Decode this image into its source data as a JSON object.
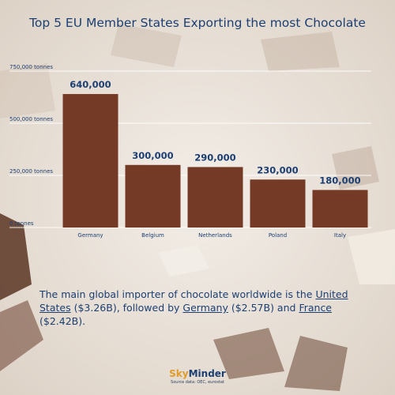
{
  "title": "Top 5 EU Member States Exporting the most Chocolate",
  "chart_data": {
    "type": "bar",
    "categories": [
      "Germany",
      "Belgium",
      "Netherlands",
      "Poland",
      "Italy"
    ],
    "values": [
      640000,
      300000,
      290000,
      230000,
      180000
    ],
    "value_labels": [
      "640,000",
      "300,000",
      "290,000",
      "230,000",
      "180,000"
    ],
    "y_ticks": [
      {
        "value": 0,
        "label": "0 tonnes"
      },
      {
        "value": 250000,
        "label": "250,000 tonnes"
      },
      {
        "value": 500000,
        "label": "500,000 tonnes"
      },
      {
        "value": 750000,
        "label": "750,000 tonnes"
      }
    ],
    "ylim": [
      0,
      750000
    ],
    "xlabel": "",
    "ylabel": "",
    "grid": true,
    "bar_color": "#743a26"
  },
  "caption": {
    "part1": "The main global importer of chocolate worldwide is the ",
    "us_link": "United States",
    "part2": " ($3.26B),  followed by ",
    "de_link": "Germany",
    "part3": " ($2.57B) and ",
    "fr_link": "France",
    "part4": " ($2.42B)."
  },
  "brand": {
    "name_prefix": "Sky",
    "name_suffix": "Minder",
    "source": "Source data: OEC, eurostat"
  },
  "colors": {
    "title": "#1c3f73",
    "bar": "#743a26",
    "accent": "#e19b2a"
  }
}
